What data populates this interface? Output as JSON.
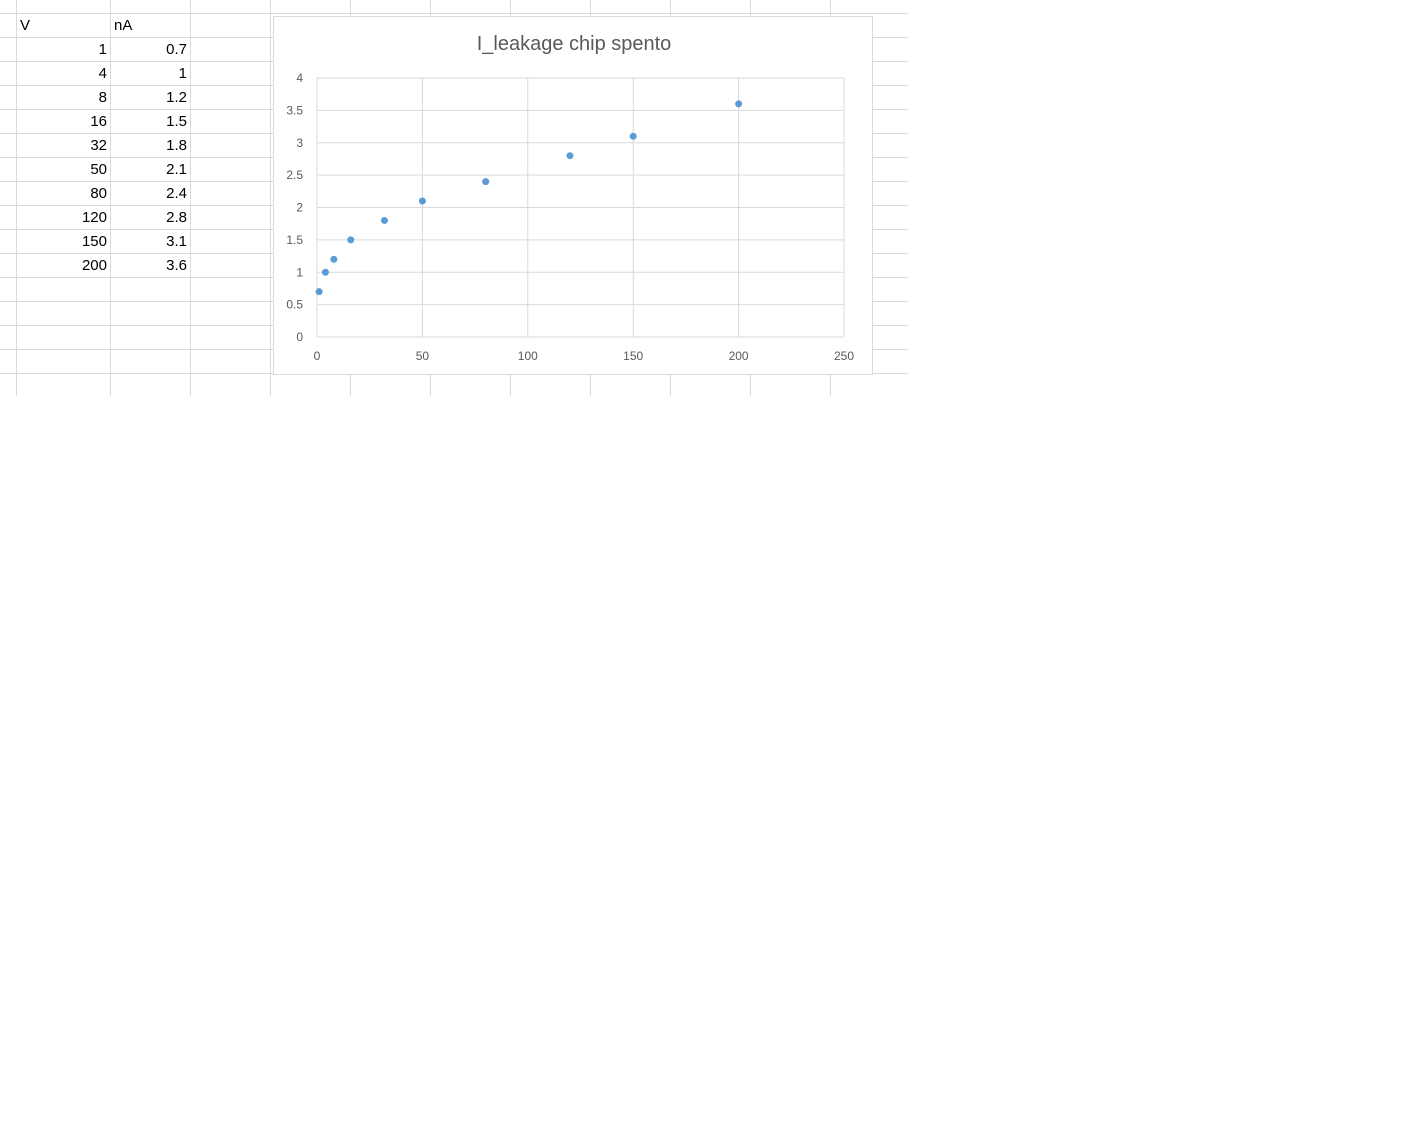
{
  "sheet": {
    "header": {
      "col_a": "V",
      "col_b": "nA"
    },
    "rows": [
      {
        "v": "1",
        "na": "0.7"
      },
      {
        "v": "4",
        "na": "1"
      },
      {
        "v": "8",
        "na": "1.2"
      },
      {
        "v": "16",
        "na": "1.5"
      },
      {
        "v": "32",
        "na": "1.8"
      },
      {
        "v": "50",
        "na": "2.1"
      },
      {
        "v": "80",
        "na": "2.4"
      },
      {
        "v": "120",
        "na": "2.8"
      },
      {
        "v": "150",
        "na": "3.1"
      },
      {
        "v": "200",
        "na": "3.6"
      }
    ]
  },
  "chart_data": {
    "type": "scatter",
    "title": "I_leakage chip spento",
    "xlabel": "",
    "ylabel": "",
    "xlim": [
      0,
      250
    ],
    "ylim": [
      0,
      4
    ],
    "x_ticks": [
      0,
      50,
      100,
      150,
      200,
      250
    ],
    "y_ticks": [
      0,
      0.5,
      1,
      1.5,
      2,
      2.5,
      3,
      3.5,
      4
    ],
    "grid": true,
    "legend": "none",
    "marker_color": "#5b9bd5",
    "series": [
      {
        "x": [
          1,
          4,
          8,
          16,
          32,
          50,
          80,
          120,
          150,
          200
        ],
        "y": [
          0.7,
          1,
          1.2,
          1.5,
          1.8,
          2.1,
          2.4,
          2.8,
          3.1,
          3.6
        ]
      }
    ]
  }
}
